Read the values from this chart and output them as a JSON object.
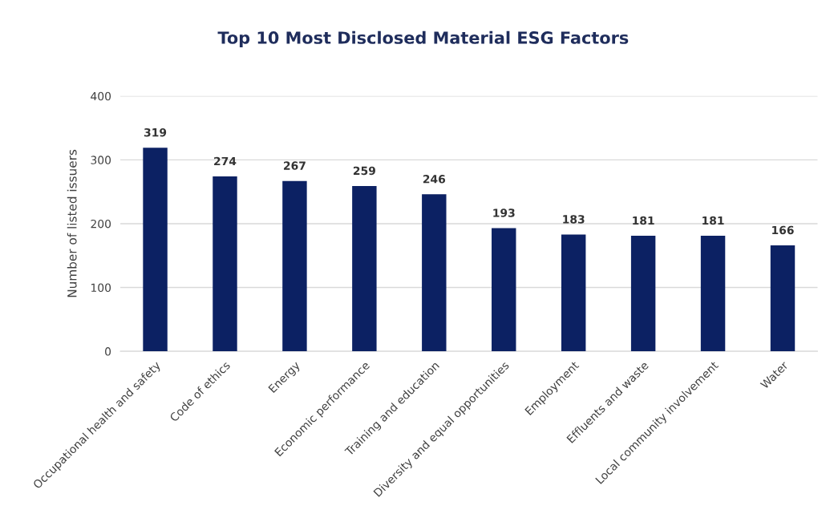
{
  "chart_data": {
    "type": "bar",
    "title": "Top 10 Most Disclosed Material ESG Factors",
    "ylabel": "Number of listed issuers",
    "categories": [
      "Occupational health and safety",
      "Code of ethics",
      "Energy",
      "Economic performance",
      "Training and education",
      "Diversity and equal opportunities",
      "Employment",
      "Effluents and waste",
      "Local community involvement",
      "Water"
    ],
    "values": [
      319,
      274,
      267,
      259,
      246,
      193,
      183,
      181,
      181,
      166
    ],
    "color": "#0c2163",
    "ylim": [
      0,
      400
    ],
    "yticks": [
      0,
      100,
      200,
      300,
      400
    ],
    "grid": "y",
    "data_labels": true,
    "legend": false
  }
}
